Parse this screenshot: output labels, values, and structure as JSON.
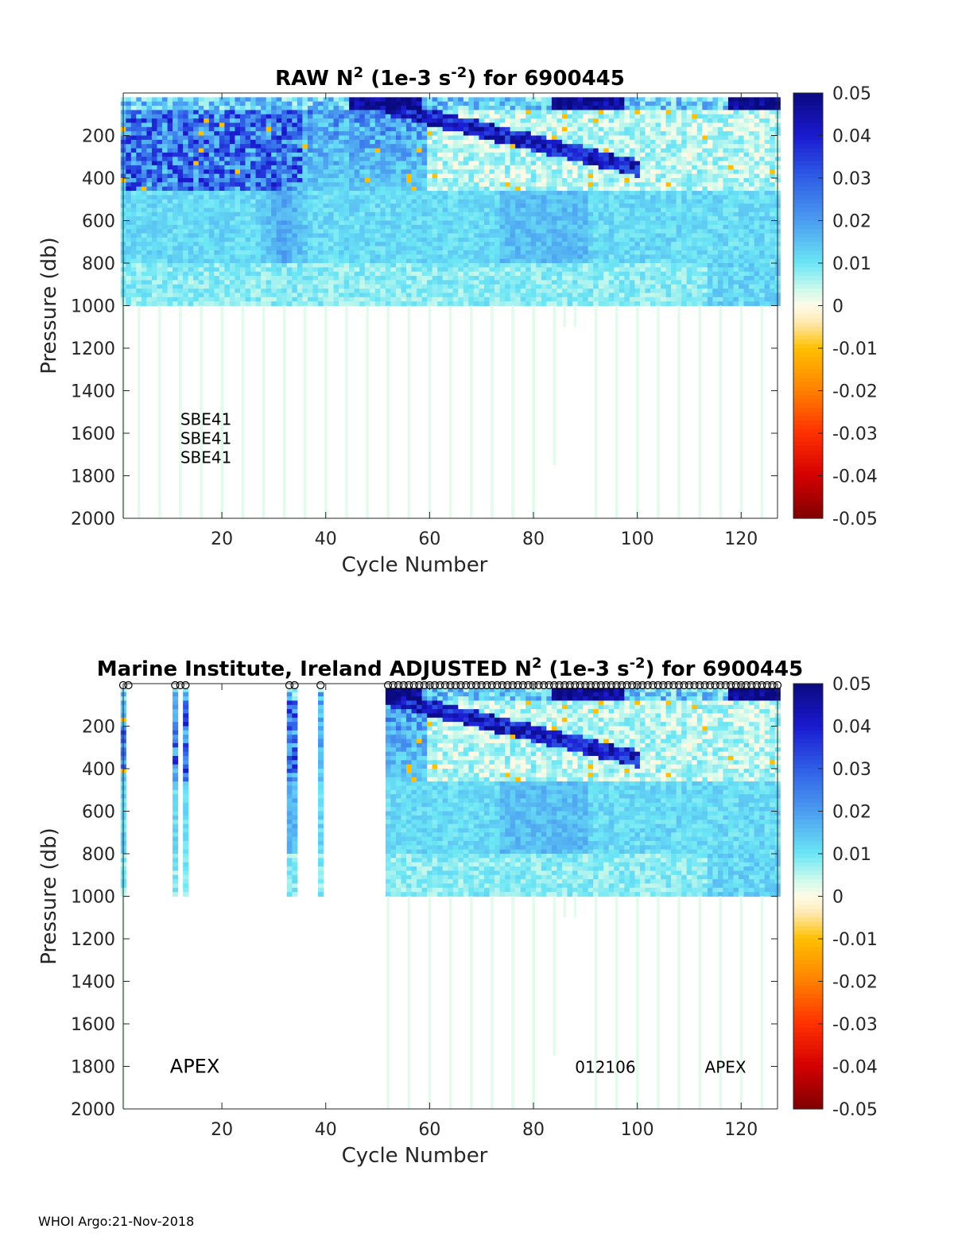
{
  "footer": "WHOI Argo:21-Nov-2018",
  "colormap": {
    "stops": [
      [
        -0.05,
        "#800000"
      ],
      [
        -0.04,
        "#d40000"
      ],
      [
        -0.03,
        "#ff3000"
      ],
      [
        -0.02,
        "#ff8000"
      ],
      [
        -0.01,
        "#ffbf00"
      ],
      [
        -0.004,
        "#ffe9b0"
      ],
      [
        0.0,
        "#fffbe8"
      ],
      [
        0.003,
        "#d8fbea"
      ],
      [
        0.01,
        "#6be6f5"
      ],
      [
        0.02,
        "#4b9cf0"
      ],
      [
        0.03,
        "#2f5ee6"
      ],
      [
        0.04,
        "#1a1ad0"
      ],
      [
        0.05,
        "#0a0a80"
      ]
    ]
  },
  "chart_data": [
    {
      "type": "heatmap",
      "title_parts": [
        "RAW N",
        "2",
        " (1e-3 s",
        "-2",
        ") for 6900445"
      ],
      "xlabel": "Cycle Number",
      "ylabel": "Pressure (db)",
      "xlim": [
        1,
        127
      ],
      "ylim": [
        2000,
        0
      ],
      "xticks": [
        20,
        40,
        60,
        80,
        100,
        120
      ],
      "yticks": [
        200,
        400,
        600,
        800,
        1000,
        1200,
        1400,
        1600,
        1800,
        2000
      ],
      "colorbar": {
        "range": [
          -0.05,
          0.05
        ],
        "ticks": [
          0.05,
          0.04,
          0.03,
          0.02,
          0.01,
          0,
          -0.01,
          -0.02,
          -0.03,
          -0.04,
          -0.05
        ]
      },
      "shallow_profile_max_pressure": 1000,
      "deep_profile_cycles": [
        1,
        4,
        8,
        12,
        16,
        20,
        24,
        28,
        32,
        36,
        40,
        44,
        48,
        52,
        56,
        60,
        64,
        68,
        72,
        76,
        80,
        84,
        88,
        92,
        96,
        100,
        104,
        108,
        112,
        116,
        120,
        124
      ],
      "annotations": [
        {
          "text": "SBE41",
          "x": 12,
          "p": 1530
        },
        {
          "text": "SBE41",
          "x": 12,
          "p": 1620
        },
        {
          "text": "SBE41",
          "x": 12,
          "p": 1710
        }
      ],
      "qc_markers": []
    },
    {
      "type": "heatmap",
      "title_prefix": "Marine Institute, Ireland",
      "title_parts": [
        "ADJUSTED N",
        "2",
        " (1e-3 s",
        "-2",
        ") for 6900445"
      ],
      "xlabel": "Cycle Number",
      "ylabel": "Pressure (db)",
      "xlim": [
        1,
        127
      ],
      "ylim": [
        2000,
        0
      ],
      "xticks": [
        20,
        40,
        60,
        80,
        100,
        120
      ],
      "yticks": [
        200,
        400,
        600,
        800,
        1000,
        1200,
        1400,
        1600,
        1800,
        2000
      ],
      "colorbar": {
        "range": [
          -0.05,
          0.05
        ],
        "ticks": [
          0.05,
          0.04,
          0.03,
          0.02,
          0.01,
          0,
          -0.01,
          -0.02,
          -0.03,
          -0.04,
          -0.05
        ]
      },
      "shallow_profile_max_pressure": 1000,
      "valid_cycles_early": [
        1,
        11,
        13,
        33,
        34,
        39
      ],
      "valid_cycles_from": 52,
      "deep_profile_cycles": [
        1,
        52,
        56,
        60,
        64,
        68,
        72,
        76,
        80,
        84,
        88,
        92,
        96,
        100,
        104,
        108,
        112,
        116,
        120,
        124
      ],
      "annotations": [
        {
          "text": "APEX",
          "x": 10,
          "p": 1800,
          "big": true
        },
        {
          "text": "012106",
          "x": 88,
          "p": 1800,
          "big": false
        },
        {
          "text": "APEX",
          "x": 113,
          "p": 1800,
          "big": false
        }
      ],
      "qc_markers": [
        1,
        2,
        11,
        12,
        13,
        33,
        34,
        39,
        52,
        53,
        54,
        55,
        56,
        57,
        58,
        59,
        60,
        61,
        62,
        63,
        64,
        65,
        66,
        67,
        68,
        69,
        70,
        71,
        72,
        73,
        74,
        75,
        76,
        77,
        78,
        79,
        80,
        81,
        82,
        83,
        84,
        85,
        86,
        87,
        88,
        89,
        90,
        91,
        92,
        93,
        94,
        95,
        96,
        97,
        98,
        99,
        100,
        101,
        102,
        103,
        104,
        105,
        106,
        107,
        108,
        109,
        110,
        111,
        112,
        113,
        114,
        115,
        116,
        117,
        118,
        119,
        120,
        121,
        122,
        123,
        124,
        125,
        126,
        127
      ]
    }
  ]
}
